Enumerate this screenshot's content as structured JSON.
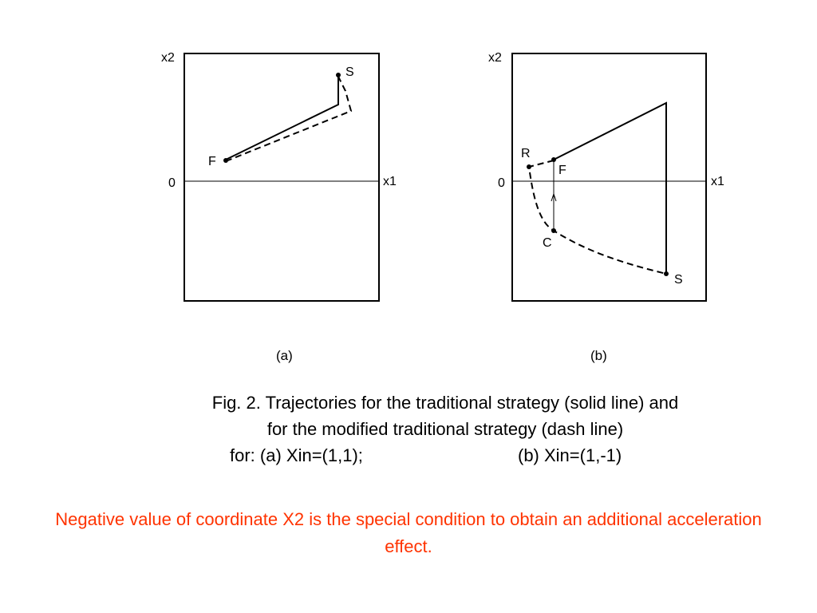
{
  "figure": {
    "panel_a": {
      "label": "(a)",
      "axis_y_label": "x2",
      "axis_x_label": "x1",
      "origin_label": "0",
      "points": {
        "start": "S",
        "finish": "F"
      }
    },
    "panel_b": {
      "label": "(b)",
      "axis_y_label": "x2",
      "axis_x_label": "x1",
      "origin_label": "0",
      "points": {
        "start": "S",
        "finish": "F",
        "reverse": "R",
        "c": "C"
      }
    },
    "line_styles": {
      "traditional": "solid",
      "modified": "dash"
    }
  },
  "caption": {
    "line1": "Fig. 2. Trajectories for the traditional strategy (solid line) and",
    "line2": "for the modified traditional strategy (dash line)",
    "line3_a": "for:  (a)  Xin=(1,1);",
    "line3_b": "(b)  Xin=(1,-1)"
  },
  "note": {
    "text": "Negative value of coordinate X2 is the special condition to obtain an additional acceleration effect.",
    "color": "#ff3300"
  }
}
